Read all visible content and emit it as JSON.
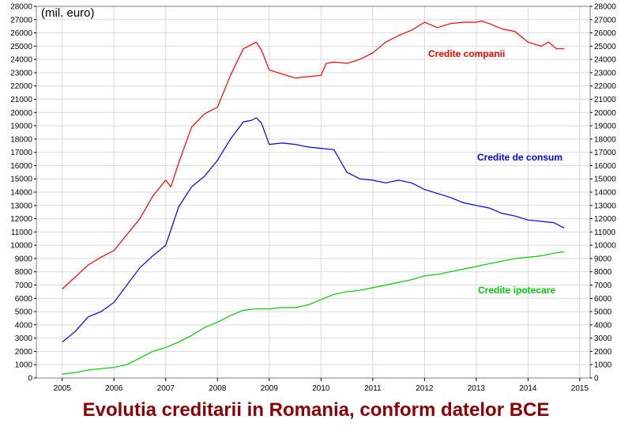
{
  "caption": "Evolutia creditarii in Romania, conform datelor BCE",
  "chart_data": {
    "type": "line",
    "title": "Evolutia creditarii in Romania, conform datelor BCE",
    "unit_label": "(mil. euro)",
    "xlabel": "",
    "ylabel": "",
    "xlim": [
      2004.5,
      2015.2
    ],
    "ylim": [
      0,
      28000
    ],
    "x_ticks": [
      "2005",
      "2006",
      "2007",
      "2008",
      "2009",
      "2010",
      "2011",
      "2012",
      "2013",
      "2014",
      "2015"
    ],
    "y_ticks": [
      "0",
      "1000",
      "2000",
      "3000",
      "4000",
      "5000",
      "6000",
      "7000",
      "8000",
      "9000",
      "10000",
      "11000",
      "12000",
      "13000",
      "14000",
      "15000",
      "16000",
      "17000",
      "18000",
      "19000",
      "20000",
      "21000",
      "22000",
      "23000",
      "24000",
      "25000",
      "26000",
      "27000",
      "28000"
    ],
    "grid": true,
    "y_axis_both_sides": true,
    "series": [
      {
        "name": "Credite companii",
        "color": "#ff0000",
        "x": [
          2005.0,
          2005.25,
          2005.5,
          2005.75,
          2006.0,
          2006.25,
          2006.5,
          2006.75,
          2007.0,
          2007.1,
          2007.25,
          2007.5,
          2007.75,
          2008.0,
          2008.25,
          2008.5,
          2008.65,
          2008.75,
          2008.85,
          2009.0,
          2009.25,
          2009.5,
          2009.75,
          2010.0,
          2010.1,
          2010.25,
          2010.5,
          2010.75,
          2011.0,
          2011.25,
          2011.5,
          2011.75,
          2012.0,
          2012.25,
          2012.5,
          2012.75,
          2013.0,
          2013.1,
          2013.25,
          2013.5,
          2013.75,
          2014.0,
          2014.25,
          2014.4,
          2014.55,
          2014.7
        ],
        "values": [
          6700,
          7600,
          8500,
          9100,
          9600,
          10800,
          12000,
          13700,
          14900,
          14400,
          16200,
          18900,
          19900,
          20400,
          22800,
          24800,
          25100,
          25300,
          24700,
          23200,
          22900,
          22600,
          22700,
          22800,
          23700,
          23800,
          23700,
          24000,
          24500,
          25300,
          25800,
          26200,
          26800,
          26400,
          26700,
          26800,
          26800,
          26900,
          26700,
          26300,
          26100,
          25300,
          25000,
          25300,
          24800,
          24800
        ]
      },
      {
        "name": "Credite de consum",
        "color": "#0000ff",
        "x": [
          2005.0,
          2005.25,
          2005.5,
          2005.75,
          2006.0,
          2006.25,
          2006.5,
          2006.75,
          2007.0,
          2007.25,
          2007.5,
          2007.75,
          2008.0,
          2008.25,
          2008.5,
          2008.65,
          2008.75,
          2008.85,
          2009.0,
          2009.25,
          2009.5,
          2009.75,
          2010.0,
          2010.25,
          2010.5,
          2010.75,
          2011.0,
          2011.25,
          2011.5,
          2011.75,
          2012.0,
          2012.25,
          2012.5,
          2012.75,
          2013.0,
          2013.25,
          2013.5,
          2013.75,
          2014.0,
          2014.25,
          2014.5,
          2014.7
        ],
        "values": [
          2700,
          3500,
          4600,
          5000,
          5700,
          7000,
          8300,
          9200,
          10000,
          12900,
          14400,
          15200,
          16400,
          18000,
          19300,
          19400,
          19600,
          19200,
          17600,
          17700,
          17600,
          17400,
          17300,
          17200,
          15500,
          15000,
          14900,
          14700,
          14900,
          14700,
          14200,
          13900,
          13600,
          13200,
          13000,
          12800,
          12400,
          12200,
          11900,
          11800,
          11700,
          11300
        ]
      },
      {
        "name": "Credite ipotecare",
        "color": "#00cc00",
        "x": [
          2005.0,
          2005.25,
          2005.5,
          2005.75,
          2006.0,
          2006.25,
          2006.5,
          2006.75,
          2007.0,
          2007.25,
          2007.5,
          2007.75,
          2008.0,
          2008.25,
          2008.5,
          2008.75,
          2009.0,
          2009.25,
          2009.5,
          2009.75,
          2010.0,
          2010.25,
          2010.5,
          2010.75,
          2011.0,
          2011.25,
          2011.5,
          2011.75,
          2012.0,
          2012.25,
          2012.5,
          2012.75,
          2013.0,
          2013.25,
          2013.5,
          2013.75,
          2014.0,
          2014.25,
          2014.5,
          2014.7
        ],
        "values": [
          300,
          400,
          600,
          700,
          800,
          1000,
          1500,
          2000,
          2300,
          2700,
          3200,
          3800,
          4200,
          4700,
          5100,
          5200,
          5200,
          5300,
          5300,
          5500,
          5900,
          6300,
          6500,
          6600,
          6800,
          7000,
          7200,
          7400,
          7700,
          7800,
          8000,
          8200,
          8400,
          8600,
          8800,
          9000,
          9100,
          9200,
          9400,
          9500
        ]
      }
    ]
  }
}
